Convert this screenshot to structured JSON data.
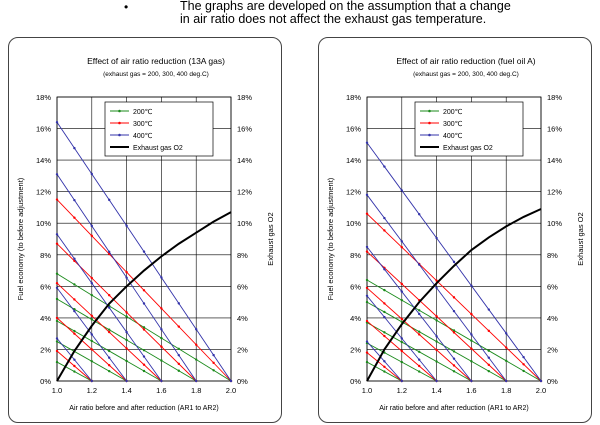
{
  "note": {
    "bullet": "•",
    "line1": "The graphs are developed on the assumption that a change",
    "line2": "in air ratio does not affect the exhaust gas temperature."
  },
  "chart_data": [
    {
      "type": "line",
      "title": "Effect of air ratio reduction (13A gas)",
      "subtitle": "(exhaust gas = 200, 300, 400 deg.C)",
      "xlabel": "Air ratio before and after reduction (AR1 to AR2)",
      "ylabel": "Fuel economy (to before adjustment)",
      "y2label": "Exhaust gas O2",
      "xlim": [
        1.0,
        2.0
      ],
      "ylim": [
        0,
        18
      ],
      "xticks": [
        "1.0",
        "1.2",
        "1.4",
        "1.6",
        "1.8",
        "2.0"
      ],
      "yticks": [
        "0%",
        "2%",
        "4%",
        "6%",
        "8%",
        "10%",
        "12%",
        "14%",
        "16%",
        "18%"
      ],
      "grid": true,
      "legend_position": "top-center",
      "legend": [
        {
          "label": "200℃",
          "color": "#1a8a1a"
        },
        {
          "label": "300℃",
          "color": "#ff0000"
        },
        {
          "label": "400℃",
          "color": "#3333aa"
        },
        {
          "label": "Exhaust gas O2",
          "color": "#000000"
        }
      ],
      "series": [
        {
          "name": "200℃",
          "color": "#1a8a1a",
          "lines": [
            {
              "x": [
                1.0,
                1.2
              ],
              "y": [
                1.2,
                0
              ]
            },
            {
              "x": [
                1.0,
                1.4
              ],
              "y": [
                2.5,
                0
              ]
            },
            {
              "x": [
                1.0,
                1.6
              ],
              "y": [
                3.8,
                0
              ]
            },
            {
              "x": [
                1.0,
                1.8
              ],
              "y": [
                5.2,
                0
              ]
            },
            {
              "x": [
                1.0,
                2.0
              ],
              "y": [
                6.8,
                0
              ]
            }
          ]
        },
        {
          "name": "300℃",
          "color": "#ff0000",
          "lines": [
            {
              "x": [
                1.0,
                1.2
              ],
              "y": [
                1.9,
                0
              ]
            },
            {
              "x": [
                1.0,
                1.4
              ],
              "y": [
                4.0,
                0
              ]
            },
            {
              "x": [
                1.0,
                1.6
              ],
              "y": [
                6.2,
                0
              ]
            },
            {
              "x": [
                1.0,
                1.8
              ],
              "y": [
                8.7,
                0
              ]
            },
            {
              "x": [
                1.0,
                2.0
              ],
              "y": [
                11.5,
                0
              ]
            }
          ]
        },
        {
          "name": "400℃",
          "color": "#3333aa",
          "lines": [
            {
              "x": [
                1.0,
                1.2
              ],
              "y": [
                2.7,
                0
              ]
            },
            {
              "x": [
                1.0,
                1.4
              ],
              "y": [
                5.9,
                0
              ]
            },
            {
              "x": [
                1.0,
                1.6
              ],
              "y": [
                9.3,
                0
              ]
            },
            {
              "x": [
                1.0,
                1.8
              ],
              "y": [
                13.1,
                0
              ]
            },
            {
              "x": [
                1.0,
                2.0
              ],
              "y": [
                16.4,
                0
              ]
            }
          ]
        },
        {
          "name": "Exhaust gas O2",
          "color": "#000000",
          "x": [
            1.0,
            1.1,
            1.2,
            1.3,
            1.4,
            1.5,
            1.6,
            1.7,
            1.8,
            1.9,
            2.0
          ],
          "y": [
            0,
            1.9,
            3.5,
            4.9,
            6.0,
            7.0,
            7.9,
            8.7,
            9.4,
            10.1,
            10.7
          ]
        }
      ]
    },
    {
      "type": "line",
      "title": "Effect of air ratio reduction (fuel oil A)",
      "subtitle": "(exhaust gas = 200, 300, 400 deg.C)",
      "xlabel": "Air ratio before and after reduction (AR1 to AR2)",
      "ylabel": "Fuel economy (to before adjustment)",
      "y2label": "Exhaust gas O2",
      "xlim": [
        1.0,
        2.0
      ],
      "ylim": [
        0,
        18
      ],
      "xticks": [
        "1.0",
        "1.2",
        "1.4",
        "1.6",
        "1.8",
        "2.0"
      ],
      "yticks": [
        "0%",
        "2%",
        "4%",
        "6%",
        "8%",
        "10%",
        "12%",
        "14%",
        "16%",
        "18%"
      ],
      "grid": true,
      "legend_position": "top-center",
      "legend": [
        {
          "label": "200℃",
          "color": "#1a8a1a"
        },
        {
          "label": "300℃",
          "color": "#ff0000"
        },
        {
          "label": "400℃",
          "color": "#3333aa"
        },
        {
          "label": "Exhaust gas O2",
          "color": "#000000"
        }
      ],
      "series": [
        {
          "name": "200℃",
          "color": "#1a8a1a",
          "lines": [
            {
              "x": [
                1.0,
                1.2
              ],
              "y": [
                1.2,
                0
              ]
            },
            {
              "x": [
                1.0,
                1.4
              ],
              "y": [
                2.4,
                0
              ]
            },
            {
              "x": [
                1.0,
                1.6
              ],
              "y": [
                3.7,
                0
              ]
            },
            {
              "x": [
                1.0,
                1.8
              ],
              "y": [
                5.0,
                0
              ]
            },
            {
              "x": [
                1.0,
                2.0
              ],
              "y": [
                6.4,
                0
              ]
            }
          ]
        },
        {
          "name": "300℃",
          "color": "#ff0000",
          "lines": [
            {
              "x": [
                1.0,
                1.2
              ],
              "y": [
                1.8,
                0
              ]
            },
            {
              "x": [
                1.0,
                1.4
              ],
              "y": [
                3.8,
                0
              ]
            },
            {
              "x": [
                1.0,
                1.6
              ],
              "y": [
                5.9,
                0
              ]
            },
            {
              "x": [
                1.0,
                1.8
              ],
              "y": [
                8.2,
                0
              ]
            },
            {
              "x": [
                1.0,
                2.0
              ],
              "y": [
                10.6,
                0
              ]
            }
          ]
        },
        {
          "name": "400℃",
          "color": "#3333aa",
          "lines": [
            {
              "x": [
                1.0,
                1.2
              ],
              "y": [
                2.5,
                0
              ]
            },
            {
              "x": [
                1.0,
                1.4
              ],
              "y": [
                5.4,
                0
              ]
            },
            {
              "x": [
                1.0,
                1.6
              ],
              "y": [
                8.5,
                0
              ]
            },
            {
              "x": [
                1.0,
                1.8
              ],
              "y": [
                11.8,
                0
              ]
            },
            {
              "x": [
                1.0,
                2.0
              ],
              "y": [
                15.1,
                0
              ]
            }
          ]
        },
        {
          "name": "Exhaust gas O2",
          "color": "#000000",
          "x": [
            1.0,
            1.1,
            1.2,
            1.3,
            1.4,
            1.5,
            1.6,
            1.7,
            1.8,
            1.9,
            2.0
          ],
          "y": [
            0,
            2.0,
            3.6,
            5.0,
            6.2,
            7.3,
            8.3,
            9.1,
            9.8,
            10.4,
            10.9
          ]
        }
      ]
    }
  ]
}
